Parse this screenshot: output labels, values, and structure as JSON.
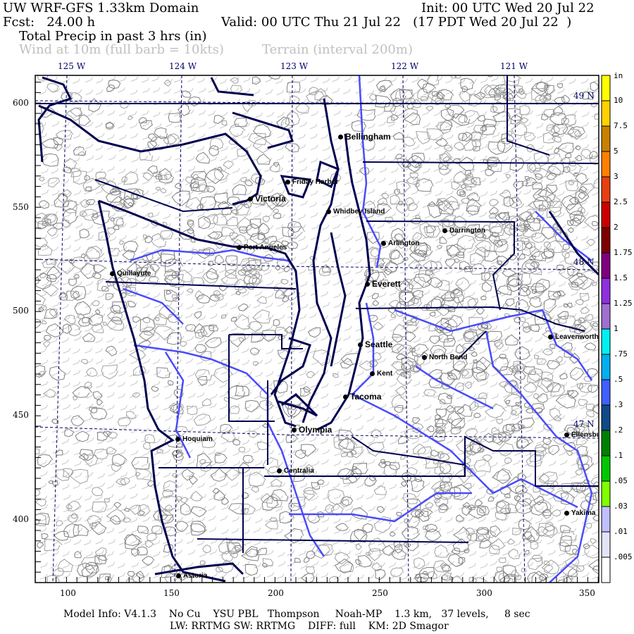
{
  "header": {
    "title": "UW WRF-GFS 1.33km Domain",
    "init": "Init: 00 UTC Wed 20 Jul 22",
    "fcst": "Fcst:   24.00 h",
    "valid": "Valid: 00 UTC Thu 21 Jul 22   (17 PDT Wed 20 Jul 22  )",
    "field": "Total Precip in past 3 hrs (in)",
    "overlay1": "Wind at 10m (full barb = 10kts)",
    "overlay2": "Terrain (interval 200m)"
  },
  "map": {
    "lon_labels": [
      "125 W",
      "124 W",
      "123 W",
      "122 W",
      "121 W"
    ],
    "lat_labels": [
      "49 N",
      "48 N",
      "47 N"
    ],
    "y_ticks": [
      "600",
      "550",
      "500",
      "450",
      "400"
    ],
    "x_ticks": [
      "100",
      "150",
      "200",
      "250",
      "300",
      "350"
    ],
    "cities": [
      "Bellingham",
      "Friday Harbor",
      "Victoria",
      "Whidbey Island",
      "Darrington",
      "Arlington",
      "Port Angeles",
      "Quillayute",
      "Everett",
      "Seattle",
      "North Bend",
      "Kent",
      "Tacoma",
      "Olympia",
      "Hoquiam",
      "Centralia",
      "Leavenworth",
      "Ellensburg",
      "Yakima",
      "Astoria"
    ],
    "colors": {
      "coast": "#000050",
      "river": "#4a4aff",
      "terrain": "#808080",
      "wind": "#c8c8c8"
    }
  },
  "colorbar": {
    "unit": "in",
    "labels": [
      "10",
      "7.5",
      "5",
      "3",
      "2.5",
      "2",
      "1.75",
      "1.5",
      "1.25",
      "1",
      ".75",
      ".5",
      ".3",
      ".2",
      ".1",
      ".05",
      ".03",
      ".01",
      ".005"
    ],
    "colors": [
      "#ffff00",
      "#ffd200",
      "#c88200",
      "#ff8000",
      "#e84010",
      "#cc0000",
      "#800000",
      "#800080",
      "#9030e0",
      "#a070d0",
      "#00f0f0",
      "#00b0f0",
      "#4060ff",
      "#104a88",
      "#008000",
      "#00c800",
      "#80ff00",
      "#c0c0ff",
      "#e4e4f8",
      "#ffffff"
    ]
  },
  "footer": {
    "line1": "Model Info: V4.1.3    No Cu    YSU PBL   Thompson     Noah-MP    1.3 km,   37 levels,     8 sec",
    "line2": "LW: RRTMG SW: RRTMG    DIFF: full    KM: 2D Smagor"
  }
}
